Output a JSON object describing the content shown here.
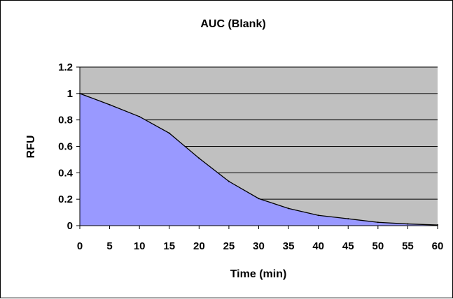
{
  "chart_data": {
    "type": "area",
    "title": "AUC (Blank)",
    "xlabel": "Time (min)",
    "ylabel": "RFU",
    "x": [
      0,
      5,
      10,
      15,
      20,
      25,
      30,
      35,
      40,
      45,
      50,
      55,
      60
    ],
    "y": [
      1.0,
      0.915,
      0.825,
      0.7,
      0.51,
      0.335,
      0.205,
      0.13,
      0.078,
      0.052,
      0.025,
      0.013,
      0.005
    ],
    "xlim": [
      0,
      60
    ],
    "ylim": [
      0,
      1.2
    ],
    "x_ticks": [
      "0",
      "5",
      "10",
      "15",
      "20",
      "25",
      "30",
      "35",
      "40",
      "45",
      "50",
      "55",
      "60"
    ],
    "y_ticks": [
      "0",
      "0.2",
      "0.4",
      "0.6",
      "0.8",
      "1",
      "1.2"
    ],
    "grid": "horizontal",
    "legend": "none",
    "colors": {
      "area_fill": "#9999ff",
      "plot_background": "#c0c0c0",
      "line": "#000000",
      "gridline": "#000000"
    }
  }
}
